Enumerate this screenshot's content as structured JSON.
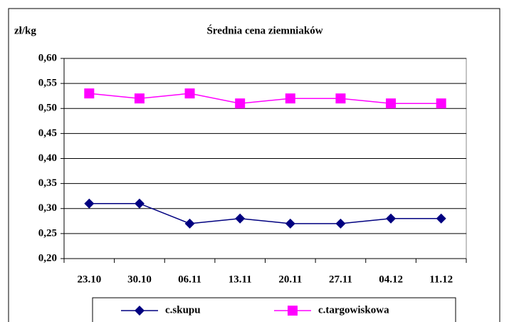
{
  "chart_data": {
    "type": "line",
    "title": "Średnia cena ziemniaków",
    "y_label": "zł/kg",
    "categories": [
      "23.10",
      "30.10",
      "06.11",
      "13.11",
      "20.11",
      "27.11",
      "04.12",
      "11.12"
    ],
    "series": [
      {
        "name": "c.skupu",
        "color": "#000080",
        "marker": "diamond",
        "values": [
          0.31,
          0.31,
          0.27,
          0.28,
          0.27,
          0.27,
          0.28,
          0.28
        ]
      },
      {
        "name": "c.targowiskowa",
        "color": "#ff00ff",
        "marker": "square",
        "values": [
          0.53,
          0.52,
          0.53,
          0.51,
          0.52,
          0.52,
          0.51,
          0.51
        ]
      }
    ],
    "ylim": [
      0.2,
      0.6
    ],
    "yticks": [
      {
        "value": 0.2,
        "label": "0,20"
      },
      {
        "value": 0.25,
        "label": "0,25"
      },
      {
        "value": 0.3,
        "label": "0,30"
      },
      {
        "value": 0.35,
        "label": "0,35"
      },
      {
        "value": 0.4,
        "label": "0,40"
      },
      {
        "value": 0.45,
        "label": "0,45"
      },
      {
        "value": 0.5,
        "label": "0,50"
      },
      {
        "value": 0.55,
        "label": "0,55"
      },
      {
        "value": 0.6,
        "label": "0,60"
      }
    ],
    "grid": true,
    "legend": "bottom"
  }
}
